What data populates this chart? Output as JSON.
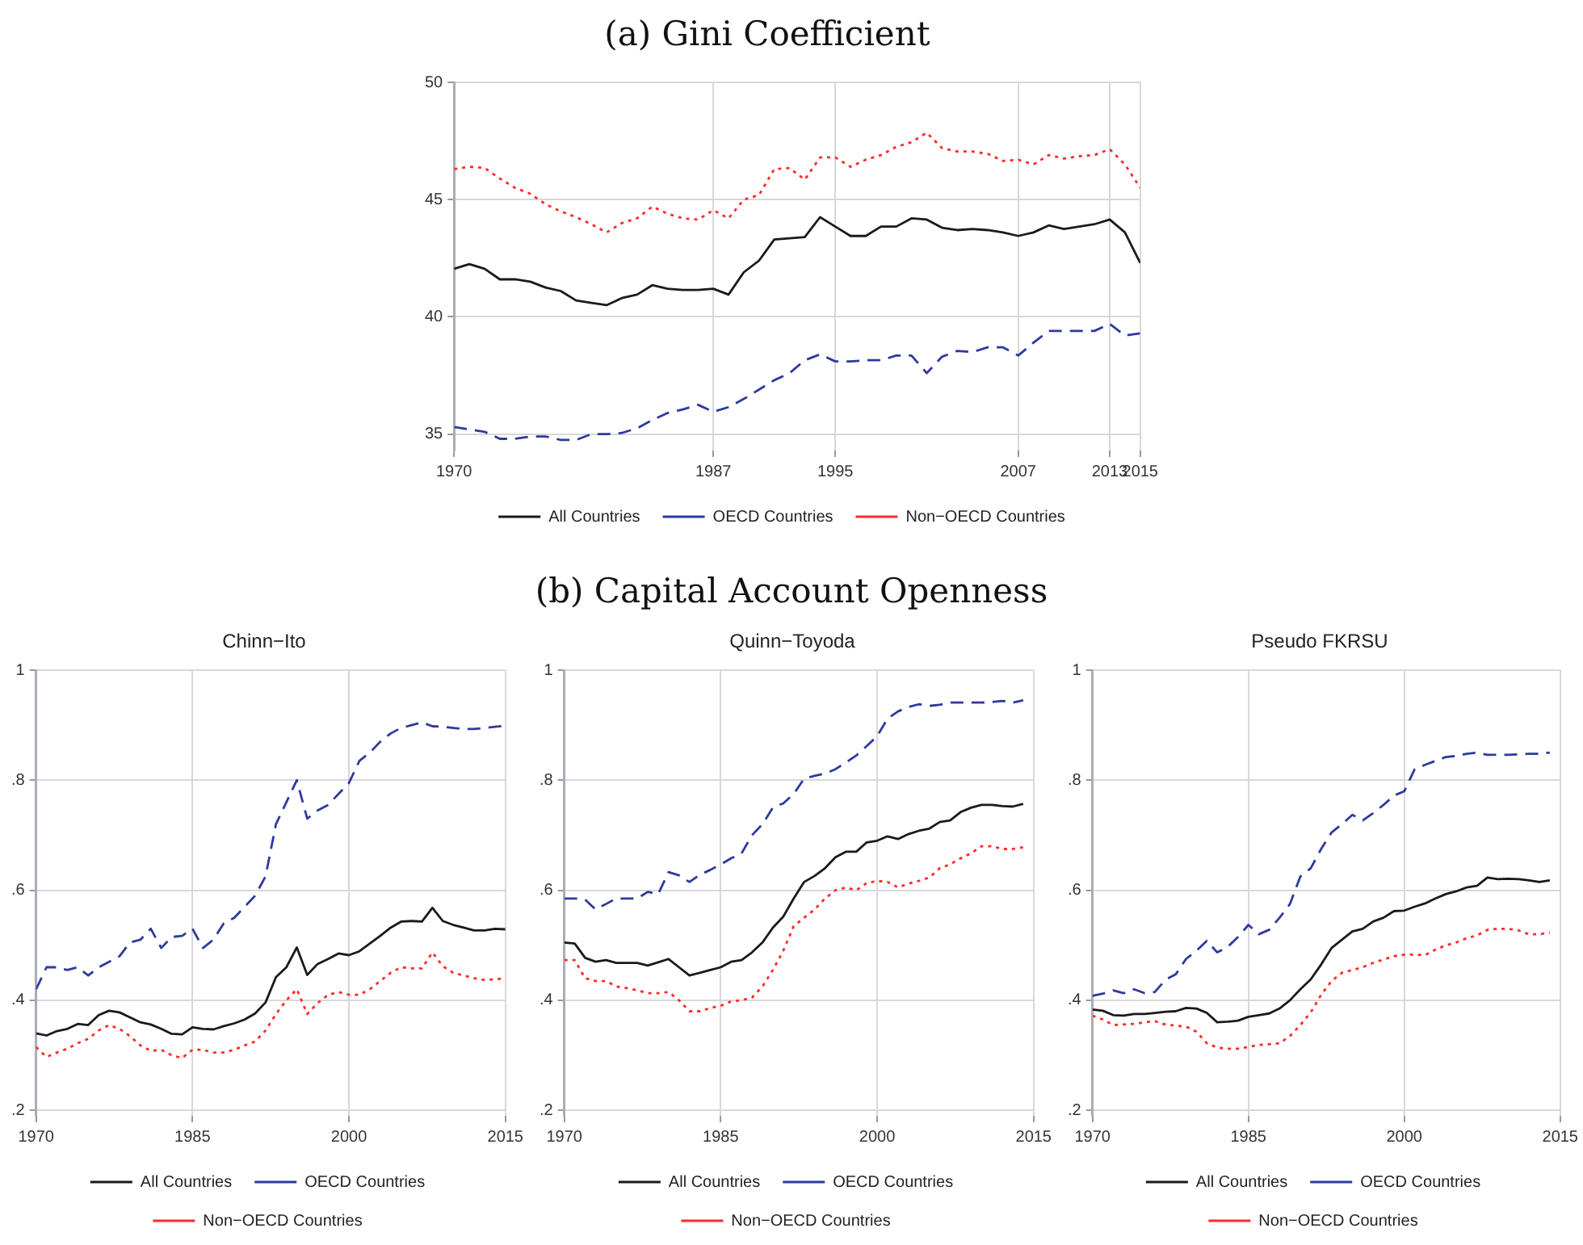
{
  "chart_data": [
    {
      "type": "line",
      "title": "(a)  Gini Coefficient",
      "x": [
        1970,
        1971,
        1972,
        1973,
        1974,
        1975,
        1976,
        1977,
        1978,
        1979,
        1980,
        1981,
        1982,
        1983,
        1984,
        1985,
        1986,
        1987,
        1988,
        1989,
        1990,
        1991,
        1992,
        1993,
        1994,
        1995,
        1996,
        1997,
        1998,
        1999,
        2000,
        2001,
        2002,
        2003,
        2004,
        2005,
        2006,
        2007,
        2008,
        2009,
        2010,
        2011,
        2012,
        2013,
        2014,
        2015
      ],
      "series": [
        {
          "name": "All Countries",
          "color": "#1a1a1a",
          "line_style": "solid",
          "values": [
            42.05,
            42.25,
            42.05,
            41.6,
            41.6,
            41.5,
            41.25,
            41.1,
            40.7,
            40.6,
            40.5,
            40.8,
            40.95,
            41.35,
            41.2,
            41.15,
            41.15,
            41.2,
            40.95,
            41.9,
            42.4,
            43.3,
            43.35,
            43.4,
            44.25,
            43.85,
            43.45,
            43.45,
            43.85,
            43.85,
            44.2,
            44.15,
            43.8,
            43.7,
            43.75,
            43.7,
            43.6,
            43.45,
            43.6,
            43.9,
            43.75,
            43.85,
            43.95,
            44.15,
            43.6,
            42.3
          ]
        },
        {
          "name": "OECD Countries",
          "color": "#2e3a9e",
          "line_style": "dashed",
          "values": [
            35.3,
            35.2,
            35.1,
            34.8,
            34.8,
            34.9,
            34.9,
            34.75,
            34.75,
            35.0,
            35.0,
            35.05,
            35.25,
            35.6,
            35.9,
            36.05,
            36.25,
            35.95,
            36.15,
            36.5,
            36.9,
            37.3,
            37.6,
            38.15,
            38.4,
            38.1,
            38.1,
            38.15,
            38.15,
            38.35,
            38.35,
            37.6,
            38.3,
            38.55,
            38.5,
            38.7,
            38.7,
            38.35,
            38.9,
            39.4,
            39.4,
            39.4,
            39.4,
            39.7,
            39.2,
            39.3
          ]
        },
        {
          "name": "Non−OECD Countries",
          "color": "#ff2a2a",
          "line_style": "dotted",
          "values": [
            46.3,
            46.4,
            46.35,
            45.9,
            45.5,
            45.25,
            44.8,
            44.5,
            44.25,
            43.95,
            43.6,
            44.0,
            44.2,
            44.7,
            44.4,
            44.2,
            44.15,
            44.55,
            44.2,
            45.0,
            45.2,
            46.3,
            46.35,
            45.85,
            46.8,
            46.8,
            46.4,
            46.7,
            46.9,
            47.25,
            47.45,
            47.85,
            47.2,
            47.05,
            47.05,
            46.95,
            46.65,
            46.7,
            46.5,
            46.9,
            46.75,
            46.85,
            46.9,
            47.15,
            46.5,
            45.5
          ]
        }
      ],
      "xlim": [
        1970,
        2015
      ],
      "xticks": [
        1970,
        1987,
        1995,
        2007,
        2013,
        2015
      ],
      "ylim": [
        34.3,
        50
      ],
      "yticks": [
        35,
        40,
        45,
        50
      ],
      "grid": true,
      "legend": "bottom"
    },
    {
      "type": "line",
      "title": "Chinn−Ito",
      "annotations": [
        "(b)  Capital Account Openness"
      ],
      "x": [
        1970,
        1971,
        1972,
        1973,
        1974,
        1975,
        1976,
        1977,
        1978,
        1979,
        1980,
        1981,
        1982,
        1983,
        1984,
        1985,
        1986,
        1987,
        1988,
        1989,
        1990,
        1991,
        1992,
        1993,
        1994,
        1995,
        1996,
        1997,
        1998,
        1999,
        2000,
        2001,
        2002,
        2003,
        2004,
        2005,
        2006,
        2007,
        2008,
        2009,
        2010,
        2011,
        2012,
        2013,
        2014,
        2015
      ],
      "series": [
        {
          "name": "All Countries",
          "color": "#1a1a1a",
          "line_style": "solid",
          "values": [
            0.34,
            0.336,
            0.344,
            0.348,
            0.357,
            0.355,
            0.373,
            0.381,
            0.378,
            0.369,
            0.36,
            0.356,
            0.348,
            0.339,
            0.338,
            0.351,
            0.348,
            0.347,
            0.353,
            0.358,
            0.365,
            0.376,
            0.396,
            0.442,
            0.46,
            0.496,
            0.446,
            0.466,
            0.475,
            0.485,
            0.482,
            0.489,
            0.503,
            0.517,
            0.532,
            0.543,
            0.544,
            0.543,
            0.568,
            0.544,
            0.537,
            0.532,
            0.527,
            0.527,
            0.53,
            0.529
          ]
        },
        {
          "name": "OECD Countries",
          "color": "#2e3a9e",
          "line_style": "dashed",
          "values": [
            0.42,
            0.46,
            0.46,
            0.455,
            0.46,
            0.445,
            0.46,
            0.47,
            0.48,
            0.505,
            0.51,
            0.53,
            0.495,
            0.515,
            0.517,
            0.53,
            0.495,
            0.51,
            0.54,
            0.55,
            0.57,
            0.59,
            0.625,
            0.72,
            0.76,
            0.8,
            0.73,
            0.745,
            0.755,
            0.775,
            0.795,
            0.835,
            0.85,
            0.87,
            0.885,
            0.895,
            0.9,
            0.905,
            0.898,
            0.897,
            0.895,
            0.893,
            0.893,
            0.895,
            0.897,
            0.899
          ]
        },
        {
          "name": "Non−OECD Countries",
          "color": "#ff2a2a",
          "line_style": "dotted",
          "values": [
            0.315,
            0.297,
            0.305,
            0.312,
            0.322,
            0.33,
            0.345,
            0.355,
            0.348,
            0.335,
            0.318,
            0.308,
            0.31,
            0.3,
            0.295,
            0.31,
            0.31,
            0.305,
            0.305,
            0.31,
            0.318,
            0.325,
            0.345,
            0.375,
            0.4,
            0.42,
            0.375,
            0.395,
            0.41,
            0.415,
            0.41,
            0.41,
            0.42,
            0.435,
            0.45,
            0.46,
            0.458,
            0.458,
            0.487,
            0.462,
            0.45,
            0.445,
            0.44,
            0.437,
            0.438,
            0.44
          ]
        }
      ],
      "xlim": [
        1970,
        2015
      ],
      "xticks": [
        1970,
        1985,
        2000,
        2015
      ],
      "ylim": [
        0.19,
        1
      ],
      "yticks": [
        {
          "value": 0.2,
          "label": ".2"
        },
        {
          "value": 0.4,
          "label": ".4"
        },
        {
          "value": 0.6,
          "label": ".6"
        },
        {
          "value": 0.8,
          "label": ".8"
        },
        1
      ],
      "grid": true,
      "legend": "bottom"
    },
    {
      "type": "line",
      "title": "Quinn−Toyoda",
      "x": [
        1970,
        1971,
        1972,
        1973,
        1974,
        1975,
        1976,
        1977,
        1978,
        1979,
        1980,
        1981,
        1982,
        1983,
        1984,
        1985,
        1986,
        1987,
        1988,
        1989,
        1990,
        1991,
        1992,
        1993,
        1994,
        1995,
        1996,
        1997,
        1998,
        1999,
        2000,
        2001,
        2002,
        2003,
        2004,
        2005,
        2006,
        2007,
        2008,
        2009,
        2010,
        2011,
        2012,
        2013,
        2014
      ],
      "series": [
        {
          "name": "All Countries",
          "color": "#1a1a1a",
          "line_style": "solid",
          "values": [
            0.505,
            0.503,
            0.477,
            0.47,
            0.473,
            0.468,
            0.468,
            0.468,
            0.463,
            0.469,
            0.475,
            0.46,
            0.445,
            0.45,
            0.455,
            0.46,
            0.47,
            0.473,
            0.487,
            0.505,
            0.532,
            0.552,
            0.585,
            0.615,
            0.626,
            0.64,
            0.66,
            0.67,
            0.67,
            0.687,
            0.69,
            0.698,
            0.693,
            0.702,
            0.708,
            0.712,
            0.724,
            0.727,
            0.742,
            0.75,
            0.755,
            0.755,
            0.753,
            0.752,
            0.757
          ]
        },
        {
          "name": "OECD Countries",
          "color": "#2e3a9e",
          "line_style": "dashed",
          "values": [
            0.585,
            0.585,
            0.583,
            0.565,
            0.575,
            0.585,
            0.585,
            0.585,
            0.597,
            0.593,
            0.633,
            0.627,
            0.615,
            0.628,
            0.637,
            0.647,
            0.658,
            0.667,
            0.7,
            0.72,
            0.75,
            0.758,
            0.775,
            0.803,
            0.808,
            0.812,
            0.82,
            0.832,
            0.845,
            0.862,
            0.88,
            0.912,
            0.925,
            0.933,
            0.938,
            0.935,
            0.937,
            0.941,
            0.941,
            0.941,
            0.941,
            0.942,
            0.944,
            0.941,
            0.945
          ]
        },
        {
          "name": "Non−OECD Countries",
          "color": "#ff2a2a",
          "line_style": "dotted",
          "values": [
            0.473,
            0.473,
            0.44,
            0.435,
            0.435,
            0.425,
            0.422,
            0.418,
            0.413,
            0.413,
            0.415,
            0.4,
            0.38,
            0.38,
            0.386,
            0.39,
            0.398,
            0.4,
            0.405,
            0.425,
            0.455,
            0.49,
            0.535,
            0.55,
            0.565,
            0.585,
            0.6,
            0.605,
            0.6,
            0.613,
            0.617,
            0.615,
            0.605,
            0.612,
            0.617,
            0.623,
            0.64,
            0.647,
            0.658,
            0.667,
            0.68,
            0.68,
            0.675,
            0.675,
            0.678
          ]
        }
      ],
      "xlim": [
        1970,
        2015
      ],
      "xticks": [
        1970,
        1985,
        2000,
        2015
      ],
      "ylim": [
        0.19,
        1
      ],
      "yticks": [
        {
          "value": 0.2,
          "label": ".2"
        },
        {
          "value": 0.4,
          "label": ".4"
        },
        {
          "value": 0.6,
          "label": ".6"
        },
        {
          "value": 0.8,
          "label": ".8"
        },
        1
      ],
      "grid": true,
      "legend": "bottom"
    },
    {
      "type": "line",
      "title": "Pseudo FKRSU",
      "x": [
        1970,
        1971,
        1972,
        1973,
        1974,
        1975,
        1976,
        1977,
        1978,
        1979,
        1980,
        1981,
        1982,
        1983,
        1984,
        1985,
        1986,
        1987,
        1988,
        1989,
        1990,
        1991,
        1992,
        1993,
        1994,
        1995,
        1996,
        1997,
        1998,
        1999,
        2000,
        2001,
        2002,
        2003,
        2004,
        2005,
        2006,
        2007,
        2008,
        2009,
        2010,
        2011,
        2012,
        2013,
        2014
      ],
      "series": [
        {
          "name": "All Countries",
          "color": "#1a1a1a",
          "line_style": "solid",
          "values": [
            0.383,
            0.381,
            0.373,
            0.372,
            0.375,
            0.375,
            0.377,
            0.379,
            0.38,
            0.386,
            0.385,
            0.377,
            0.36,
            0.361,
            0.363,
            0.37,
            0.373,
            0.376,
            0.385,
            0.4,
            0.42,
            0.438,
            0.465,
            0.495,
            0.51,
            0.525,
            0.53,
            0.543,
            0.55,
            0.562,
            0.563,
            0.57,
            0.576,
            0.585,
            0.593,
            0.598,
            0.605,
            0.608,
            0.623,
            0.62,
            0.621,
            0.62,
            0.618,
            0.615,
            0.618
          ]
        },
        {
          "name": "OECD Countries",
          "color": "#2e3a9e",
          "line_style": "dashed",
          "values": [
            0.408,
            0.412,
            0.418,
            0.413,
            0.42,
            0.413,
            0.415,
            0.437,
            0.447,
            0.475,
            0.49,
            0.508,
            0.487,
            0.497,
            0.515,
            0.537,
            0.52,
            0.528,
            0.55,
            0.575,
            0.625,
            0.64,
            0.675,
            0.705,
            0.72,
            0.737,
            0.727,
            0.74,
            0.755,
            0.772,
            0.78,
            0.82,
            0.828,
            0.835,
            0.842,
            0.844,
            0.848,
            0.85,
            0.846,
            0.846,
            0.846,
            0.847,
            0.848,
            0.848,
            0.85
          ]
        },
        {
          "name": "Non−OECD Countries",
          "color": "#ff2a2a",
          "line_style": "dotted",
          "values": [
            0.372,
            0.365,
            0.355,
            0.356,
            0.357,
            0.36,
            0.362,
            0.356,
            0.354,
            0.352,
            0.343,
            0.322,
            0.314,
            0.312,
            0.312,
            0.315,
            0.319,
            0.32,
            0.322,
            0.335,
            0.355,
            0.378,
            0.41,
            0.435,
            0.45,
            0.455,
            0.46,
            0.468,
            0.474,
            0.48,
            0.483,
            0.483,
            0.482,
            0.492,
            0.5,
            0.505,
            0.513,
            0.518,
            0.528,
            0.53,
            0.53,
            0.527,
            0.52,
            0.52,
            0.523
          ]
        }
      ],
      "xlim": [
        1970,
        2015
      ],
      "xticks": [
        1970,
        1985,
        2000,
        2015
      ],
      "ylim": [
        0.19,
        1
      ],
      "yticks": [
        {
          "value": 0.2,
          "label": ".2"
        },
        {
          "value": 0.4,
          "label": ".4"
        },
        {
          "value": 0.6,
          "label": ".6"
        },
        {
          "value": 0.8,
          "label": ".8"
        },
        1
      ],
      "grid": true,
      "legend": "bottom"
    }
  ]
}
